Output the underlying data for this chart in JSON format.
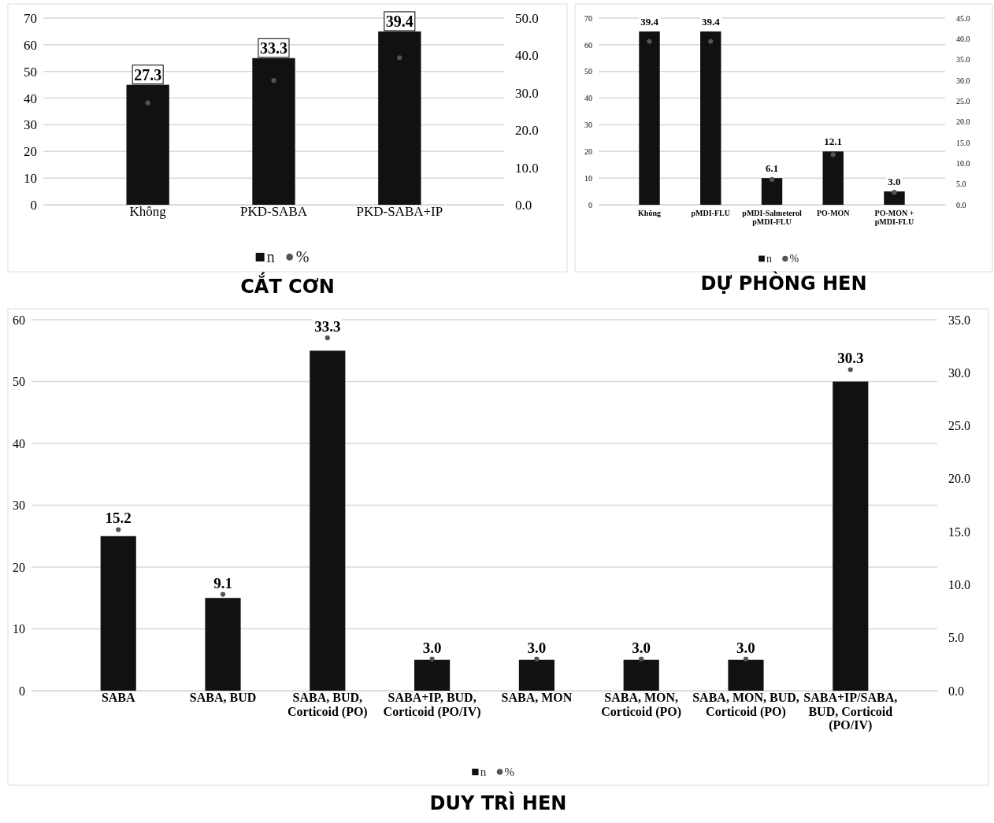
{
  "chart_data": [
    {
      "type": "bar",
      "title": "CẮT CƠN",
      "categories": [
        "Không",
        "PKD-SABA",
        "PKD-SABA+IP"
      ],
      "ylim": [
        0,
        70
      ],
      "yticks": [
        0,
        10,
        20,
        30,
        40,
        50,
        60,
        70
      ],
      "y2lim": [
        0,
        50
      ],
      "y2ticks": [
        {
          "value": 0,
          "label": "0.0"
        },
        {
          "value": 10,
          "label": "10.0"
        },
        {
          "value": 20,
          "label": "20.0"
        },
        {
          "value": 30,
          "label": "30.0"
        },
        {
          "value": 40,
          "label": "40.0"
        },
        {
          "value": 50,
          "label": "50.0"
        }
      ],
      "grid": "y",
      "legend": "bottom",
      "marker": "circle",
      "series": [
        {
          "name": "n",
          "color": "#111111",
          "values": [
            45,
            55,
            65
          ]
        },
        {
          "name": "%",
          "type": "scatter",
          "axis": "y2",
          "color": "#555555",
          "values": [
            27.3,
            33.3,
            39.4
          ],
          "value_labels": [
            "27.3",
            "33.3",
            "39.4"
          ]
        }
      ]
    },
    {
      "type": "bar",
      "title": "DỰ PHÒNG HEN",
      "categories": [
        "Không",
        "pMDI-FLU",
        "pMDI-Salmeterol pMDI-FLU",
        "PO-MON",
        "PO-MON + pMDI-FLU"
      ],
      "ylim": [
        0,
        70
      ],
      "yticks": [
        0,
        10,
        20,
        30,
        40,
        50,
        60,
        70
      ],
      "y2lim": [
        0,
        45
      ],
      "y2ticks": [
        {
          "value": 0,
          "label": "0.0"
        },
        {
          "value": 5,
          "label": "5.0"
        },
        {
          "value": 10,
          "label": "10.0"
        },
        {
          "value": 15,
          "label": "15.0"
        },
        {
          "value": 20,
          "label": "20.0"
        },
        {
          "value": 25,
          "label": "25.0"
        },
        {
          "value": 30,
          "label": "30.0"
        },
        {
          "value": 35,
          "label": "35.0"
        },
        {
          "value": 40,
          "label": "40.0"
        },
        {
          "value": 45,
          "label": "45.0"
        }
      ],
      "grid": "y",
      "legend": "bottom",
      "marker": "circle",
      "series": [
        {
          "name": "n",
          "color": "#111111",
          "values": [
            65,
            65,
            10,
            20,
            5
          ]
        },
        {
          "name": "%",
          "type": "scatter",
          "axis": "y2",
          "color": "#555555",
          "values": [
            39.4,
            39.4,
            6.1,
            12.1,
            3.0
          ],
          "value_labels": [
            "39.4",
            "39.4",
            "6.1",
            "12.1",
            "3.0"
          ]
        }
      ]
    },
    {
      "type": "bar",
      "title": "DUY TRÌ HEN",
      "categories": [
        "SABA",
        "SABA, BUD",
        "SABA, BUD, Corticoid (PO)",
        "SABA+IP, BUD, Corticoid (PO/IV)",
        "SABA, MON",
        "SABA, MON, Corticoid (PO)",
        "SABA, MON, BUD, Corticoid (PO)",
        "SABA+IP/SABA, BUD, Corticoid (PO/IV)"
      ],
      "ylim": [
        0,
        60
      ],
      "yticks": [
        0,
        10,
        20,
        30,
        40,
        50,
        60
      ],
      "y2lim": [
        0,
        35
      ],
      "y2ticks": [
        {
          "value": 0,
          "label": "0.0"
        },
        {
          "value": 5,
          "label": "5.0"
        },
        {
          "value": 10,
          "label": "10.0"
        },
        {
          "value": 15,
          "label": "15.0"
        },
        {
          "value": 20,
          "label": "20.0"
        },
        {
          "value": 25,
          "label": "25.0"
        },
        {
          "value": 30,
          "label": "30.0"
        },
        {
          "value": 35,
          "label": "35.0"
        }
      ],
      "grid": "y",
      "legend": "bottom",
      "marker": "circle",
      "series": [
        {
          "name": "n",
          "color": "#111111",
          "values": [
            25,
            15,
            55,
            5,
            5,
            5,
            5,
            50
          ]
        },
        {
          "name": "%",
          "type": "scatter",
          "axis": "y2",
          "color": "#555555",
          "values": [
            15.2,
            9.1,
            33.3,
            3.0,
            3.0,
            3.0,
            3.0,
            30.3
          ],
          "value_labels": [
            "15.2",
            "9.1",
            "33.3",
            "3.0",
            "3.0",
            "3.0",
            "3.0",
            "30.3"
          ]
        }
      ]
    }
  ]
}
